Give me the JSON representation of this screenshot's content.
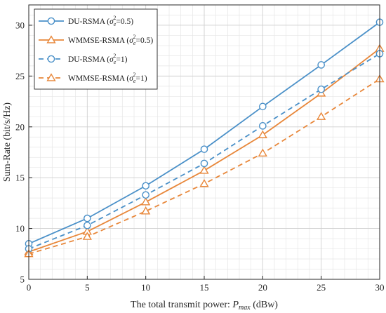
{
  "chart_data": {
    "type": "line",
    "xlabel": "The total transmit power: P_max (dBw)",
    "xlabel_parts": {
      "prefix": "The total transmit power: ",
      "symbol": "P",
      "subscript": "max",
      "suffix": " (dBw)"
    },
    "ylabel": "Sum-Rate (bit/s/Hz)",
    "xlim": [
      0,
      30
    ],
    "ylim": [
      5,
      32
    ],
    "x_major_ticks": [
      0,
      5,
      10,
      15,
      20,
      25,
      30
    ],
    "y_major_ticks": [
      5,
      10,
      15,
      20,
      25,
      30
    ],
    "x_minor_step": 1,
    "y_minor_step": 1,
    "grid": true,
    "minor_grid": true,
    "legend_position": "top-left",
    "x": [
      0,
      5,
      10,
      15,
      20,
      25,
      30
    ],
    "series": [
      {
        "name": "DU-RSMA (σe²=0.5)",
        "legend": {
          "prefix": "DU-RSMA (",
          "value": "=0.5)"
        },
        "values": [
          8.5,
          11.0,
          14.2,
          17.8,
          22.0,
          26.1,
          30.3
        ],
        "color": "#4a90c8",
        "dash": "solid",
        "marker": "circle"
      },
      {
        "name": "WMMSE-RSMA (σe²=0.5)",
        "legend": {
          "prefix": "WMMSE-RSMA (",
          "value": "=0.5)"
        },
        "values": [
          7.7,
          9.7,
          12.6,
          15.7,
          19.2,
          23.3,
          27.7
        ],
        "color": "#e8873a",
        "dash": "solid",
        "marker": "triangle"
      },
      {
        "name": "DU-RSMA (σe²=1)",
        "legend": {
          "prefix": "DU-RSMA (",
          "value": "=1)"
        },
        "values": [
          8.0,
          10.3,
          13.3,
          16.4,
          20.1,
          23.7,
          27.2
        ],
        "color": "#4a90c8",
        "dash": "dashed",
        "marker": "circle"
      },
      {
        "name": "WMMSE-RSMA (σe²=1)",
        "legend": {
          "prefix": "WMMSE-RSMA (",
          "value": "=1)"
        },
        "values": [
          7.5,
          9.2,
          11.7,
          14.4,
          17.4,
          21.0,
          24.7
        ],
        "color": "#e8873a",
        "dash": "dashed",
        "marker": "triangle"
      }
    ]
  }
}
